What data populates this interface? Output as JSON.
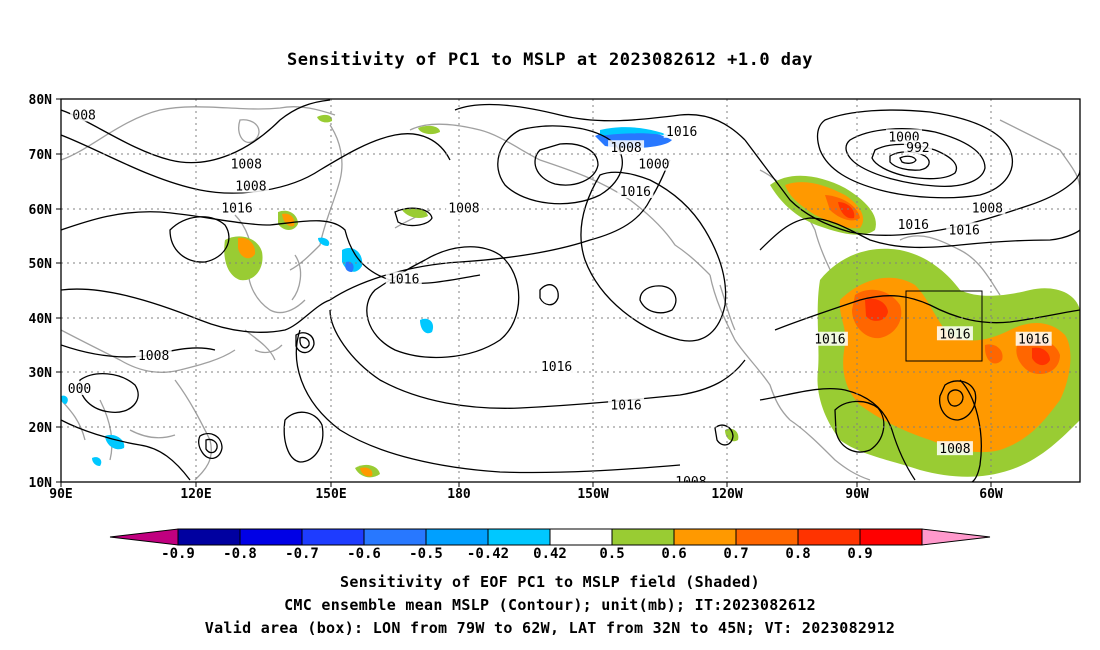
{
  "title": "Sensitivity of PC1 to MSLP at 2023082612 +1.0 day",
  "axes": {
    "lat_labels": [
      "80N",
      "70N",
      "60N",
      "50N",
      "40N",
      "30N",
      "20N",
      "10N"
    ],
    "lon_labels": [
      "90E",
      "120E",
      "150E",
      "180",
      "150W",
      "120W",
      "90W",
      "60W"
    ]
  },
  "contour_labels": [
    {
      "text": "1016",
      "lon": 224,
      "lat": 74
    },
    {
      "text": "1008",
      "lon": 212,
      "lat": 71
    },
    {
      "text": "1000",
      "lon": 218,
      "lat": 68
    },
    {
      "text": "1000",
      "lon": 272,
      "lat": 73
    },
    {
      "text": "992",
      "lon": 275,
      "lat": 71
    },
    {
      "text": "1016",
      "lon": 214,
      "lat": 63
    },
    {
      "text": "1008",
      "lon": 130,
      "lat": 68
    },
    {
      "text": "1008",
      "lon": 131,
      "lat": 64
    },
    {
      "text": "1016",
      "lon": 128,
      "lat": 60
    },
    {
      "text": "1008",
      "lon": 177,
      "lat": 60
    },
    {
      "text": "1016",
      "lon": 274,
      "lat": 57
    },
    {
      "text": "1008",
      "lon": 290,
      "lat": 60
    },
    {
      "text": "1016",
      "lon": 285,
      "lat": 56
    },
    {
      "text": "1016",
      "lon": 164,
      "lat": 47
    },
    {
      "text": "1016",
      "lon": 256,
      "lat": 36
    },
    {
      "text": "1016",
      "lon": 283,
      "lat": 37
    },
    {
      "text": "1016",
      "lon": 300,
      "lat": 36
    },
    {
      "text": "1008",
      "lon": 110,
      "lat": 33
    },
    {
      "text": "1016",
      "lon": 197,
      "lat": 31
    },
    {
      "text": "1016",
      "lon": 212,
      "lat": 24
    },
    {
      "text": "1008",
      "lon": 283,
      "lat": 16
    },
    {
      "text": "1008",
      "lon": 226,
      "lat": 10
    },
    {
      "text": "008",
      "lon": 95,
      "lat": 77
    },
    {
      "text": "000",
      "lon": 94,
      "lat": 27
    }
  ],
  "valid_box": {
    "lon_from": -79,
    "lon_to": -62,
    "lat_from": 32,
    "lat_to": 45
  },
  "colorbar": {
    "labels": [
      "-0.9",
      "-0.8",
      "-0.7",
      "-0.6",
      "-0.5",
      "-0.42",
      "0.42",
      "0.5",
      "0.6",
      "0.7",
      "0.8",
      "0.9"
    ],
    "colors": [
      "#0000a0",
      "#0000e6",
      "#1e3cff",
      "#2878ff",
      "#00a0ff",
      "#00c8ff",
      "#ffffff",
      "#99cc33",
      "#ff9900",
      "#ff6600",
      "#ff3300",
      "#ff0000"
    ],
    "low_end_color": "#c0007f",
    "high_end_color": "#ff99cc"
  },
  "captions": [
    "Sensitivity of EOF PC1 to MSLP field (Shaded)",
    "CMC ensemble mean MSLP (Contour); unit(mb); IT:2023082612",
    "Valid area (box): LON from 79W to 62W, LAT from 32N to 45N; VT: 2023082912"
  ]
}
